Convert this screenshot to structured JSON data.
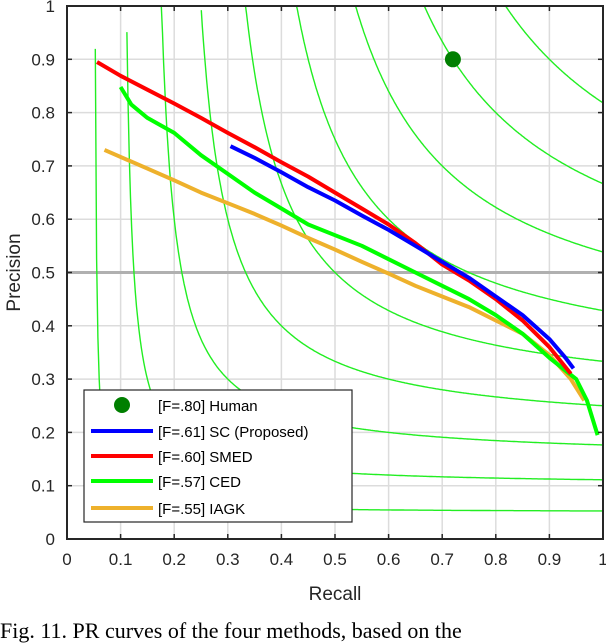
{
  "chart_data": {
    "type": "line",
    "title": "",
    "xlabel": "Recall",
    "ylabel": "Precision",
    "xlim": [
      0,
      1
    ],
    "ylim": [
      0,
      1
    ],
    "xticks": [
      "0",
      "0.1",
      "0.2",
      "0.3",
      "0.4",
      "0.5",
      "0.6",
      "0.7",
      "0.8",
      "0.9",
      "1"
    ],
    "yticks": [
      "0",
      "0.1",
      "0.2",
      "0.3",
      "0.4",
      "0.5",
      "0.6",
      "0.7",
      "0.8",
      "0.9",
      "1"
    ],
    "grid": true,
    "legend_position": "lower left",
    "reference_line": {
      "precision": 0.5,
      "color": "#b0b0b0"
    },
    "iso_f_curves": [
      0.1,
      0.2,
      0.3,
      0.4,
      0.5,
      0.6,
      0.7,
      0.8,
      0.9
    ],
    "points": [
      {
        "name": "Human",
        "label": "[F=.80] Human",
        "recall": 0.72,
        "precision": 0.9,
        "color": "#007f00"
      }
    ],
    "series": [
      {
        "name": "SC (Proposed)",
        "label": "[F=.61] SC (Proposed)",
        "color": "#0000ff",
        "recall": [
          0.305,
          0.35,
          0.4,
          0.45,
          0.5,
          0.55,
          0.6,
          0.65,
          0.7,
          0.75,
          0.8,
          0.85,
          0.9,
          0.93,
          0.945
        ],
        "precision": [
          0.737,
          0.715,
          0.688,
          0.66,
          0.635,
          0.607,
          0.58,
          0.55,
          0.52,
          0.49,
          0.455,
          0.42,
          0.375,
          0.34,
          0.32
        ]
      },
      {
        "name": "SMED",
        "label": "[F=.60] SMED",
        "color": "#ff0000",
        "recall": [
          0.056,
          0.1,
          0.15,
          0.2,
          0.25,
          0.3,
          0.35,
          0.4,
          0.45,
          0.5,
          0.55,
          0.6,
          0.65,
          0.7,
          0.75,
          0.8,
          0.85,
          0.9,
          0.94
        ],
        "precision": [
          0.895,
          0.869,
          0.843,
          0.817,
          0.79,
          0.762,
          0.735,
          0.707,
          0.68,
          0.65,
          0.62,
          0.59,
          0.555,
          0.515,
          0.485,
          0.45,
          0.41,
          0.36,
          0.31
        ]
      },
      {
        "name": "CED",
        "label": "[F=.57] CED",
        "color": "#00ff00",
        "recall": [
          0.1,
          0.12,
          0.15,
          0.2,
          0.25,
          0.3,
          0.35,
          0.4,
          0.45,
          0.5,
          0.55,
          0.6,
          0.65,
          0.7,
          0.75,
          0.8,
          0.85,
          0.9,
          0.95,
          0.97,
          0.99
        ],
        "precision": [
          0.848,
          0.815,
          0.79,
          0.762,
          0.72,
          0.685,
          0.65,
          0.62,
          0.59,
          0.57,
          0.55,
          0.525,
          0.5,
          0.475,
          0.45,
          0.42,
          0.385,
          0.34,
          0.3,
          0.26,
          0.195
        ]
      },
      {
        "name": "IAGK",
        "label": "[F=.55] IAGK",
        "color": "#eeb12c",
        "recall": [
          0.07,
          0.15,
          0.2,
          0.25,
          0.3,
          0.35,
          0.4,
          0.45,
          0.5,
          0.55,
          0.6,
          0.65,
          0.7,
          0.75,
          0.8,
          0.85,
          0.9,
          0.94,
          0.965
        ],
        "precision": [
          0.73,
          0.695,
          0.673,
          0.65,
          0.63,
          0.61,
          0.588,
          0.565,
          0.543,
          0.52,
          0.498,
          0.475,
          0.455,
          0.435,
          0.41,
          0.385,
          0.345,
          0.3,
          0.26
        ]
      }
    ]
  },
  "legend": {
    "human": "[F=.80] Human",
    "sc": "[F=.61] SC (Proposed)",
    "smed": "[F=.60] SMED",
    "ced": "[F=.57] CED",
    "iagk": "[F=.55] IAGK"
  },
  "axes": {
    "xlabel": "Recall",
    "ylabel": "Precision"
  },
  "caption": "Fig. 11.  PR curves of the four methods, based on the"
}
